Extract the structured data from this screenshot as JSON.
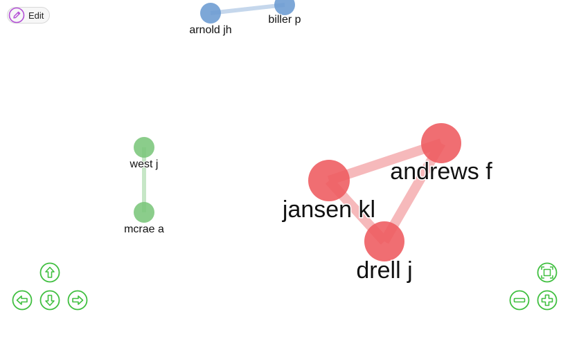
{
  "toolbar": {
    "edit_label": "Edit"
  },
  "colors": {
    "blue": "#6b9bd1",
    "green": "#7bc67b",
    "red": "#ee5a5f",
    "control": "#3fbf3f",
    "edit_icon": "#b34fd6"
  },
  "chart_data": {
    "type": "network",
    "nodes": [
      {
        "id": "arnold",
        "label": "arnold jh",
        "group": "blue"
      },
      {
        "id": "biller",
        "label": "biller p",
        "group": "blue"
      },
      {
        "id": "west",
        "label": "west j",
        "group": "green"
      },
      {
        "id": "mcrae",
        "label": "mcrae a",
        "group": "green"
      },
      {
        "id": "andrews",
        "label": "andrews f",
        "group": "red"
      },
      {
        "id": "jansen",
        "label": "jansen kl",
        "group": "red"
      },
      {
        "id": "drell",
        "label": "drell j",
        "group": "red"
      }
    ],
    "edges": [
      {
        "from": "arnold",
        "to": "biller"
      },
      {
        "from": "west",
        "to": "mcrae"
      },
      {
        "from": "jansen",
        "to": "andrews"
      },
      {
        "from": "jansen",
        "to": "drell"
      },
      {
        "from": "andrews",
        "to": "drell"
      }
    ]
  },
  "controls": [
    "up-icon",
    "left-icon",
    "down-icon",
    "right-icon",
    "fit-icon",
    "zoom-out-icon",
    "zoom-in-icon"
  ]
}
